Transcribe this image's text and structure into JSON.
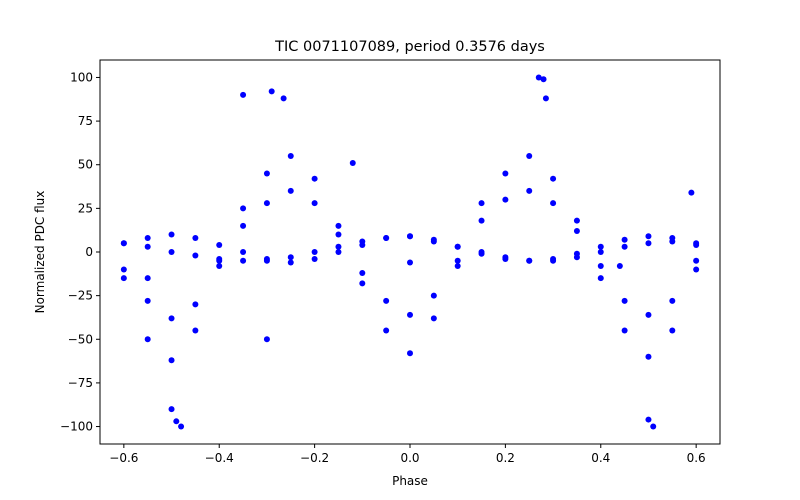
{
  "chart_data": {
    "type": "scatter",
    "title": "TIC 0071107089, period 0.3576 days",
    "xlabel": "Phase",
    "ylabel": "Normalized PDC flux",
    "xlim": [
      -0.65,
      0.65
    ],
    "ylim": [
      -110,
      110
    ],
    "x_ticks": [
      -0.6,
      -0.4,
      -0.2,
      0.0,
      0.2,
      0.4,
      0.6
    ],
    "x_tick_labels": [
      "−0.6",
      "−0.4",
      "−0.2",
      "0.0",
      "0.2",
      "0.4",
      "0.6"
    ],
    "y_ticks": [
      -100,
      -75,
      -50,
      -25,
      0,
      25,
      50,
      75,
      100
    ],
    "y_tick_labels": [
      "−100",
      "−75",
      "−50",
      "−25",
      "0",
      "25",
      "50",
      "75",
      "100"
    ],
    "grid": false,
    "legend": "none",
    "marker_color": "#0000ff",
    "series": [
      {
        "x": [
          -0.6,
          -0.55,
          -0.5,
          -0.45,
          -0.4,
          -0.35,
          -0.3,
          -0.25,
          -0.2,
          -0.15,
          -0.1,
          -0.05,
          0.0,
          0.05,
          0.1,
          0.15,
          0.2,
          0.25,
          0.3,
          0.35,
          0.4,
          0.45,
          0.5,
          0.55,
          0.6
        ],
        "y": [
          -15,
          -50,
          -62,
          -45,
          -8,
          25,
          45,
          55,
          42,
          15,
          -18,
          -45,
          -58,
          -38,
          -8,
          28,
          45,
          55,
          42,
          18,
          -15,
          -45,
          -60,
          -45,
          -10
        ]
      },
      {
        "x": [
          -0.6,
          -0.55,
          -0.5,
          -0.45,
          -0.4,
          -0.35,
          -0.3,
          -0.25,
          -0.2,
          -0.15,
          -0.1,
          -0.05,
          0.0,
          0.05,
          0.1,
          0.15,
          0.2,
          0.25,
          0.3,
          0.35,
          0.4,
          0.45,
          0.5,
          0.55,
          0.6
        ],
        "y": [
          -10,
          -28,
          -38,
          -30,
          -5,
          15,
          28,
          35,
          28,
          10,
          -12,
          -28,
          -36,
          -25,
          -5,
          18,
          30,
          35,
          28,
          12,
          -8,
          -28,
          -36,
          -28,
          -5
        ]
      },
      {
        "x": [
          -0.6,
          -0.55,
          -0.5,
          -0.45,
          -0.4,
          -0.35,
          -0.3,
          -0.25,
          -0.2,
          -0.15,
          -0.1,
          -0.05,
          0.0,
          0.05,
          0.1,
          0.15,
          0.2,
          0.25,
          0.3,
          0.35,
          0.4,
          0.45,
          0.5,
          0.55,
          0.6
        ],
        "y": [
          5,
          8,
          10,
          8,
          4,
          0,
          -4,
          -6,
          -4,
          0,
          4,
          8,
          9,
          7,
          3,
          -1,
          -4,
          -5,
          -4,
          -1,
          3,
          7,
          9,
          8,
          4
        ]
      },
      {
        "x": [
          -0.6,
          -0.55,
          -0.5,
          -0.45,
          -0.4,
          -0.35,
          -0.3,
          -0.25,
          -0.2,
          -0.15,
          -0.1,
          -0.05,
          0.0,
          0.05,
          0.1,
          0.15,
          0.2,
          0.25,
          0.3,
          0.35,
          0.4,
          0.45,
          0.5,
          0.55,
          0.6
        ],
        "y": [
          5,
          3,
          0,
          -2,
          -4,
          -5,
          -5,
          -3,
          0,
          3,
          6,
          8,
          9,
          6,
          3,
          0,
          -3,
          -5,
          -5,
          -3,
          0,
          3,
          5,
          6,
          5
        ]
      },
      {
        "x": [
          -0.35,
          -0.29,
          -0.265,
          -0.5,
          -0.49,
          -0.48,
          0.27,
          0.28,
          0.285,
          0.5,
          0.51,
          -0.3,
          -0.12,
          0.59,
          0.0,
          -0.55,
          0.44
        ],
        "y": [
          90,
          92,
          88,
          -90,
          -97,
          -100,
          100,
          99,
          88,
          -96,
          -100,
          -50,
          51,
          34,
          -6,
          -15,
          -8
        ]
      }
    ]
  }
}
